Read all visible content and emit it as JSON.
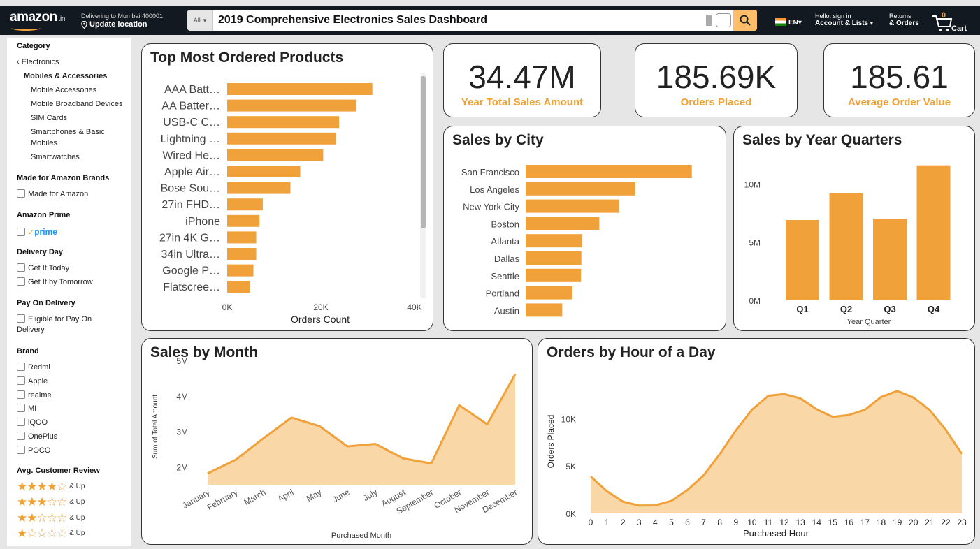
{
  "header": {
    "logo": "amazon",
    "logo_suffix": ".in",
    "deliver_to": "Delivering to Mumbai 400001",
    "update_location": "Update location",
    "search_category": "All",
    "search_value": "2019 Comprehensive Electronics Sales Dashboard",
    "language": "EN",
    "hello": "Hello, sign in",
    "account": "Account & Lists",
    "returns": "Returns",
    "orders": "& Orders",
    "cart_count": "0",
    "cart_label": "Cart"
  },
  "sidebar": {
    "category_heading": "Category",
    "back_link": "Electronics",
    "subcategory": "Mobiles & Accessories",
    "items": [
      "Mobile Accessories",
      "Mobile Broadband Devices",
      "SIM Cards",
      "Smartphones & Basic",
      "Mobiles",
      "Smartwatches"
    ],
    "brands_heading": "Made for Amazon Brands",
    "made_for_amazon": "Made for Amazon",
    "prime_heading": "Amazon Prime",
    "prime_label": "prime",
    "delivery_heading": "Delivery Day",
    "delivery_options": [
      "Get It Today",
      "Get It by Tomorrow"
    ],
    "pay_heading": "Pay On Delivery",
    "pay_option_1": "Eligible for Pay On",
    "pay_option_2": "Delivery",
    "brand_heading": "Brand",
    "brands": [
      "Redmi",
      "Apple",
      "realme",
      "MI",
      "iQOO",
      "OnePlus",
      "POCO"
    ],
    "review_heading": "Avg. Customer Review",
    "review_levels": [
      4,
      3,
      2,
      1
    ],
    "and_up": "& Up",
    "star_color": "#f0a132"
  },
  "kpis": [
    {
      "value": "34.47M",
      "label": "Year Total Sales Amount"
    },
    {
      "value": "185.69K",
      "label": "Orders Placed"
    },
    {
      "value": "185.61",
      "label": "Average Order Value"
    }
  ],
  "colors": {
    "bar": "#f0a13a",
    "area_fill": "#f9d7a6",
    "area_line": "#f0a13a",
    "kpi_label": "#f0a132"
  },
  "chart_data": [
    {
      "id": "products",
      "type": "bar",
      "orientation": "horizontal",
      "title": "Top Most Ordered Products",
      "categories": [
        "AAA Batt…",
        "AA Batter…",
        "USB-C C…",
        "Lightning …",
        "Wired He…",
        "Apple Air…",
        "Bose Sou…",
        "27in FHD…",
        "iPhone",
        "27in 4K G…",
        "34in Ultra…",
        "Google P…",
        "Flatscree…"
      ],
      "values": [
        31000,
        27600,
        23900,
        23200,
        20500,
        15600,
        13500,
        7600,
        6900,
        6200,
        6200,
        5600,
        4900
      ],
      "xlabel": "Orders Count",
      "xlim": [
        0,
        40000
      ],
      "xticks": [
        "0K",
        "20K",
        "40K"
      ],
      "grid": false
    },
    {
      "id": "city",
      "type": "bar",
      "orientation": "horizontal",
      "title": "Sales by City",
      "categories": [
        "San Francisco",
        "Los Angeles",
        "New York City",
        "Boston",
        "Atlanta",
        "Dallas",
        "Seattle",
        "Portland",
        "Austin"
      ],
      "values": [
        8.26,
        5.45,
        4.66,
        3.66,
        2.8,
        2.77,
        2.75,
        2.32,
        1.82
      ],
      "xlim": [
        0,
        9
      ],
      "grid": false
    },
    {
      "id": "quarters",
      "type": "bar",
      "title": "Sales by Year Quarters",
      "categories": [
        "Q1",
        "Q2",
        "Q3",
        "Q4"
      ],
      "values": [
        6.9,
        9.2,
        7.0,
        11.6
      ],
      "xlabel": "Year Quarter",
      "ylim": [
        0,
        12
      ],
      "yticks": [
        "0M",
        "5M",
        "10M"
      ],
      "grid": false
    },
    {
      "id": "month",
      "type": "area",
      "title": "Sales by Month",
      "categories": [
        "January",
        "February",
        "March",
        "April",
        "May",
        "June",
        "July",
        "August",
        "September",
        "October",
        "November",
        "December"
      ],
      "values": [
        1.82,
        2.2,
        2.81,
        3.39,
        3.15,
        2.58,
        2.65,
        2.24,
        2.1,
        3.74,
        3.2,
        4.61
      ],
      "xlabel": "Purchased Month",
      "ylabel": "Sum of Total Amount",
      "ylim": [
        1.5,
        5
      ],
      "yticks": [
        "2M",
        "3M",
        "4M",
        "5M"
      ],
      "grid": false
    },
    {
      "id": "hour",
      "type": "area",
      "title": "Orders by Hour of a Day",
      "categories": [
        "0",
        "1",
        "2",
        "3",
        "4",
        "5",
        "6",
        "7",
        "8",
        "9",
        "10",
        "11",
        "12",
        "13",
        "14",
        "15",
        "16",
        "17",
        "18",
        "19",
        "20",
        "21",
        "22",
        "23"
      ],
      "values": [
        3900,
        2350,
        1240,
        830,
        850,
        1320,
        2480,
        4010,
        6250,
        8750,
        10940,
        12410,
        12590,
        12130,
        10990,
        10180,
        10380,
        10940,
        12280,
        12910,
        12230,
        10920,
        8820,
        6280
      ],
      "xlabel": "Purchased Hour",
      "ylabel": "Orders Placed",
      "ylim": [
        0,
        14000
      ],
      "yticks": [
        "0K",
        "5K",
        "10K"
      ],
      "grid": false
    }
  ]
}
